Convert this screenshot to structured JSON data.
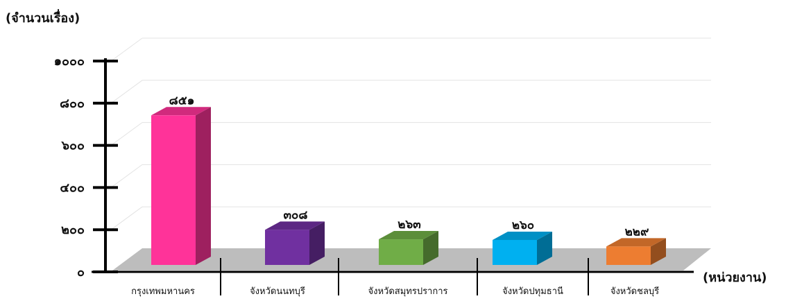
{
  "chart_data": {
    "type": "bar",
    "ylabel": "(จำนวนเรื่อง)",
    "xlabel": "(หน่วยงาน)",
    "categories": [
      "กรุงเทพมหานคร",
      "จังหวัดนนทบุรี",
      "จังหวัดสมุทรปราการ",
      "จังหวัดปทุมธานี",
      "จังหวัดชลบุรี"
    ],
    "values": [
      851,
      308,
      263,
      260,
      229
    ],
    "data_labels": [
      "๘๕๑",
      "๓๐๘",
      "๒๖๓",
      "๒๖๐",
      "๒๒๙"
    ],
    "ylim": [
      0,
      1000
    ],
    "yticks": [
      0,
      200,
      400,
      600,
      800,
      1000
    ],
    "ytick_labels": [
      "๐",
      "๒๐๐",
      "๔๐๐",
      "๖๐๐",
      "๘๐๐",
      "๑๐๐๐"
    ],
    "colors": [
      "#ff3399",
      "#7030a0",
      "#70ad47",
      "#00b0f0",
      "#ed7d31"
    ],
    "style": "3d-column",
    "grid": true
  }
}
